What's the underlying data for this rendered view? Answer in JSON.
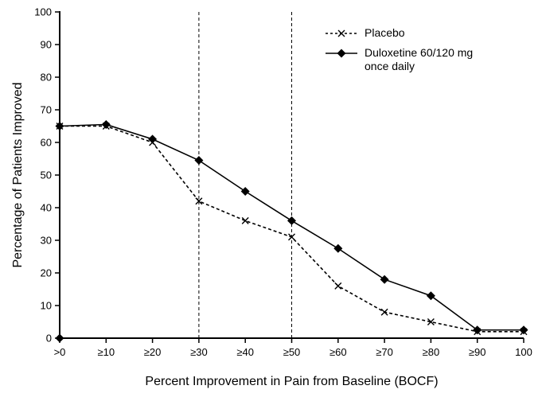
{
  "chart_data": {
    "type": "line",
    "title": "",
    "xlabel": "Percent Improvement in Pain from Baseline (BOCF)",
    "ylabel": "Percentage of Patients Improved",
    "categories": [
      ">0",
      "≥10",
      "≥20",
      "≥30",
      "≥40",
      "≥50",
      "≥60",
      "≥70",
      "≥80",
      "≥90",
      "100"
    ],
    "ylim": [
      0,
      100
    ],
    "ytick_step": 10,
    "grid": "off",
    "reference_lines_x": [
      "≥30",
      "≥50"
    ],
    "legend_position": "top-right-inside",
    "origin_marker": true,
    "series": [
      {
        "name": "Placebo",
        "line_style": "dashed",
        "marker": "x",
        "color": "#000000",
        "values": [
          65,
          65,
          60,
          42,
          36,
          31,
          16,
          8,
          5,
          2,
          2
        ]
      },
      {
        "name": "Duloxetine 60/120 mg once daily",
        "line_style": "solid",
        "marker": "diamond",
        "color": "#000000",
        "values": [
          65,
          65.5,
          61,
          54.5,
          45,
          36,
          27.5,
          18,
          13,
          2.5,
          2.5
        ]
      }
    ]
  },
  "legend": {
    "placebo_label": "Placebo",
    "duloxetine_label_line1": "Duloxetine 60/120 mg",
    "duloxetine_label_line2": "once daily"
  }
}
